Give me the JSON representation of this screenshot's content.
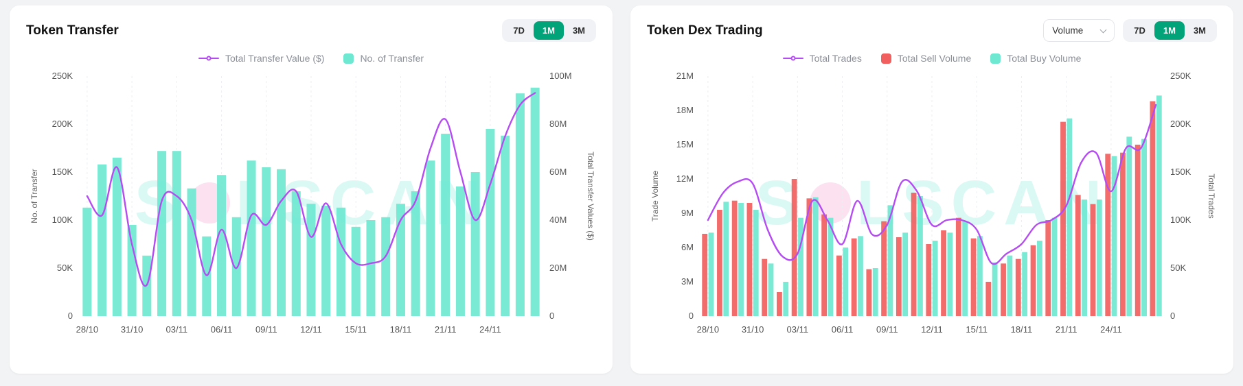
{
  "colors": {
    "purple": "#b44cf2",
    "teal": "#6fe8d1",
    "red": "#f15f5f",
    "toggle_active": "#00a478"
  },
  "watermark": {
    "left": "S",
    "right": "LSCAN",
    "full_text": "SOLSCAN"
  },
  "left_panel": {
    "ranges": [
      "7D",
      "1M",
      "3M"
    ],
    "active_range": "1M"
  },
  "right_panel": {
    "dropdown_value": "Volume",
    "ranges": [
      "7D",
      "1M",
      "3M"
    ],
    "active_range": "1M"
  },
  "chart_data": [
    {
      "type": "bar",
      "title": "Token Transfer",
      "n_points": 31,
      "x_tick_labels": [
        "28/10",
        "31/10",
        "03/11",
        "06/11",
        "09/11",
        "12/11",
        "15/11",
        "18/11",
        "21/11",
        "24/11"
      ],
      "x_tick_indices": [
        0,
        3,
        6,
        9,
        12,
        15,
        18,
        21,
        24,
        27
      ],
      "left_axis": {
        "label": "No. of Transfer",
        "tick_labels": [
          "0",
          "50K",
          "100K",
          "150K",
          "200K",
          "250K"
        ],
        "max": 250
      },
      "right_axis": {
        "label": "Total Transfer Values ($)",
        "tick_labels": [
          "0",
          "20M",
          "40M",
          "60M",
          "80M",
          "100M"
        ],
        "max": 100
      },
      "grid": "vertical-dashed",
      "legend_position": "top-center",
      "series": [
        {
          "name": "Total Transfer Value ($)",
          "type": "line",
          "axis": "right",
          "color": "#b44cf2",
          "unit": "M",
          "values": [
            50,
            42,
            62,
            30,
            13,
            48,
            50,
            40,
            17,
            36,
            20,
            42,
            38,
            48,
            52,
            33,
            47,
            30,
            22,
            22,
            25,
            40,
            48,
            70,
            82,
            60,
            40,
            55,
            75,
            88,
            93
          ]
        },
        {
          "name": "No. of Transfer",
          "type": "bar",
          "axis": "left",
          "color": "#6fe8d1",
          "unit": "K",
          "values": [
            113,
            158,
            165,
            95,
            63,
            172,
            172,
            133,
            83,
            147,
            103,
            162,
            155,
            153,
            130,
            117,
            115,
            113,
            93,
            100,
            103,
            117,
            130,
            162,
            190,
            135,
            150,
            195,
            188,
            232,
            238
          ]
        }
      ]
    },
    {
      "type": "bar",
      "title": "Token Dex Trading",
      "n_points": 31,
      "x_tick_labels": [
        "28/10",
        "31/10",
        "03/11",
        "06/11",
        "09/11",
        "12/11",
        "15/11",
        "18/11",
        "21/11",
        "24/11"
      ],
      "x_tick_indices": [
        0,
        3,
        6,
        9,
        12,
        15,
        18,
        21,
        24,
        27
      ],
      "left_axis": {
        "label": "Trade Volume",
        "tick_labels": [
          "0",
          "3M",
          "6M",
          "9M",
          "12M",
          "15M",
          "18M",
          "21M"
        ],
        "max": 21
      },
      "right_axis": {
        "label": "Total Trades",
        "tick_labels": [
          "0",
          "50K",
          "100K",
          "150K",
          "200K",
          "250K"
        ],
        "max": 250
      },
      "grid": "vertical-dashed",
      "legend_position": "top-center",
      "series": [
        {
          "name": "Total Trades",
          "type": "line",
          "axis": "right",
          "color": "#b44cf2",
          "unit": "K",
          "values": [
            100,
            128,
            140,
            138,
            90,
            62,
            65,
            120,
            100,
            75,
            120,
            85,
            95,
            140,
            130,
            95,
            100,
            100,
            90,
            55,
            65,
            75,
            95,
            100,
            115,
            160,
            170,
            130,
            175,
            175,
            220
          ]
        },
        {
          "name": "Total Sell Volume",
          "type": "bar",
          "axis": "left",
          "color": "#f15f5f",
          "unit": "M",
          "values": [
            7.2,
            9.3,
            10.1,
            9.9,
            5.0,
            2.1,
            12.0,
            10.3,
            8.9,
            5.3,
            6.8,
            4.1,
            8.3,
            6.9,
            10.8,
            6.3,
            7.5,
            8.6,
            6.8,
            3.0,
            4.6,
            5.0,
            6.2,
            8.4,
            17.0,
            10.6,
            9.8,
            14.2,
            14.3,
            15.0,
            18.8
          ]
        },
        {
          "name": "Total Buy Volume",
          "type": "bar",
          "axis": "left",
          "color": "#6fe8d1",
          "unit": "M",
          "values": [
            7.3,
            10.0,
            9.9,
            9.3,
            4.6,
            3.0,
            8.6,
            10.4,
            8.6,
            6.0,
            7.0,
            4.2,
            9.7,
            7.3,
            10.5,
            6.6,
            7.3,
            8.3,
            7.0,
            4.7,
            5.3,
            5.6,
            6.6,
            8.6,
            17.3,
            10.2,
            10.2,
            14.0,
            15.7,
            15.5,
            19.3
          ]
        }
      ]
    }
  ]
}
